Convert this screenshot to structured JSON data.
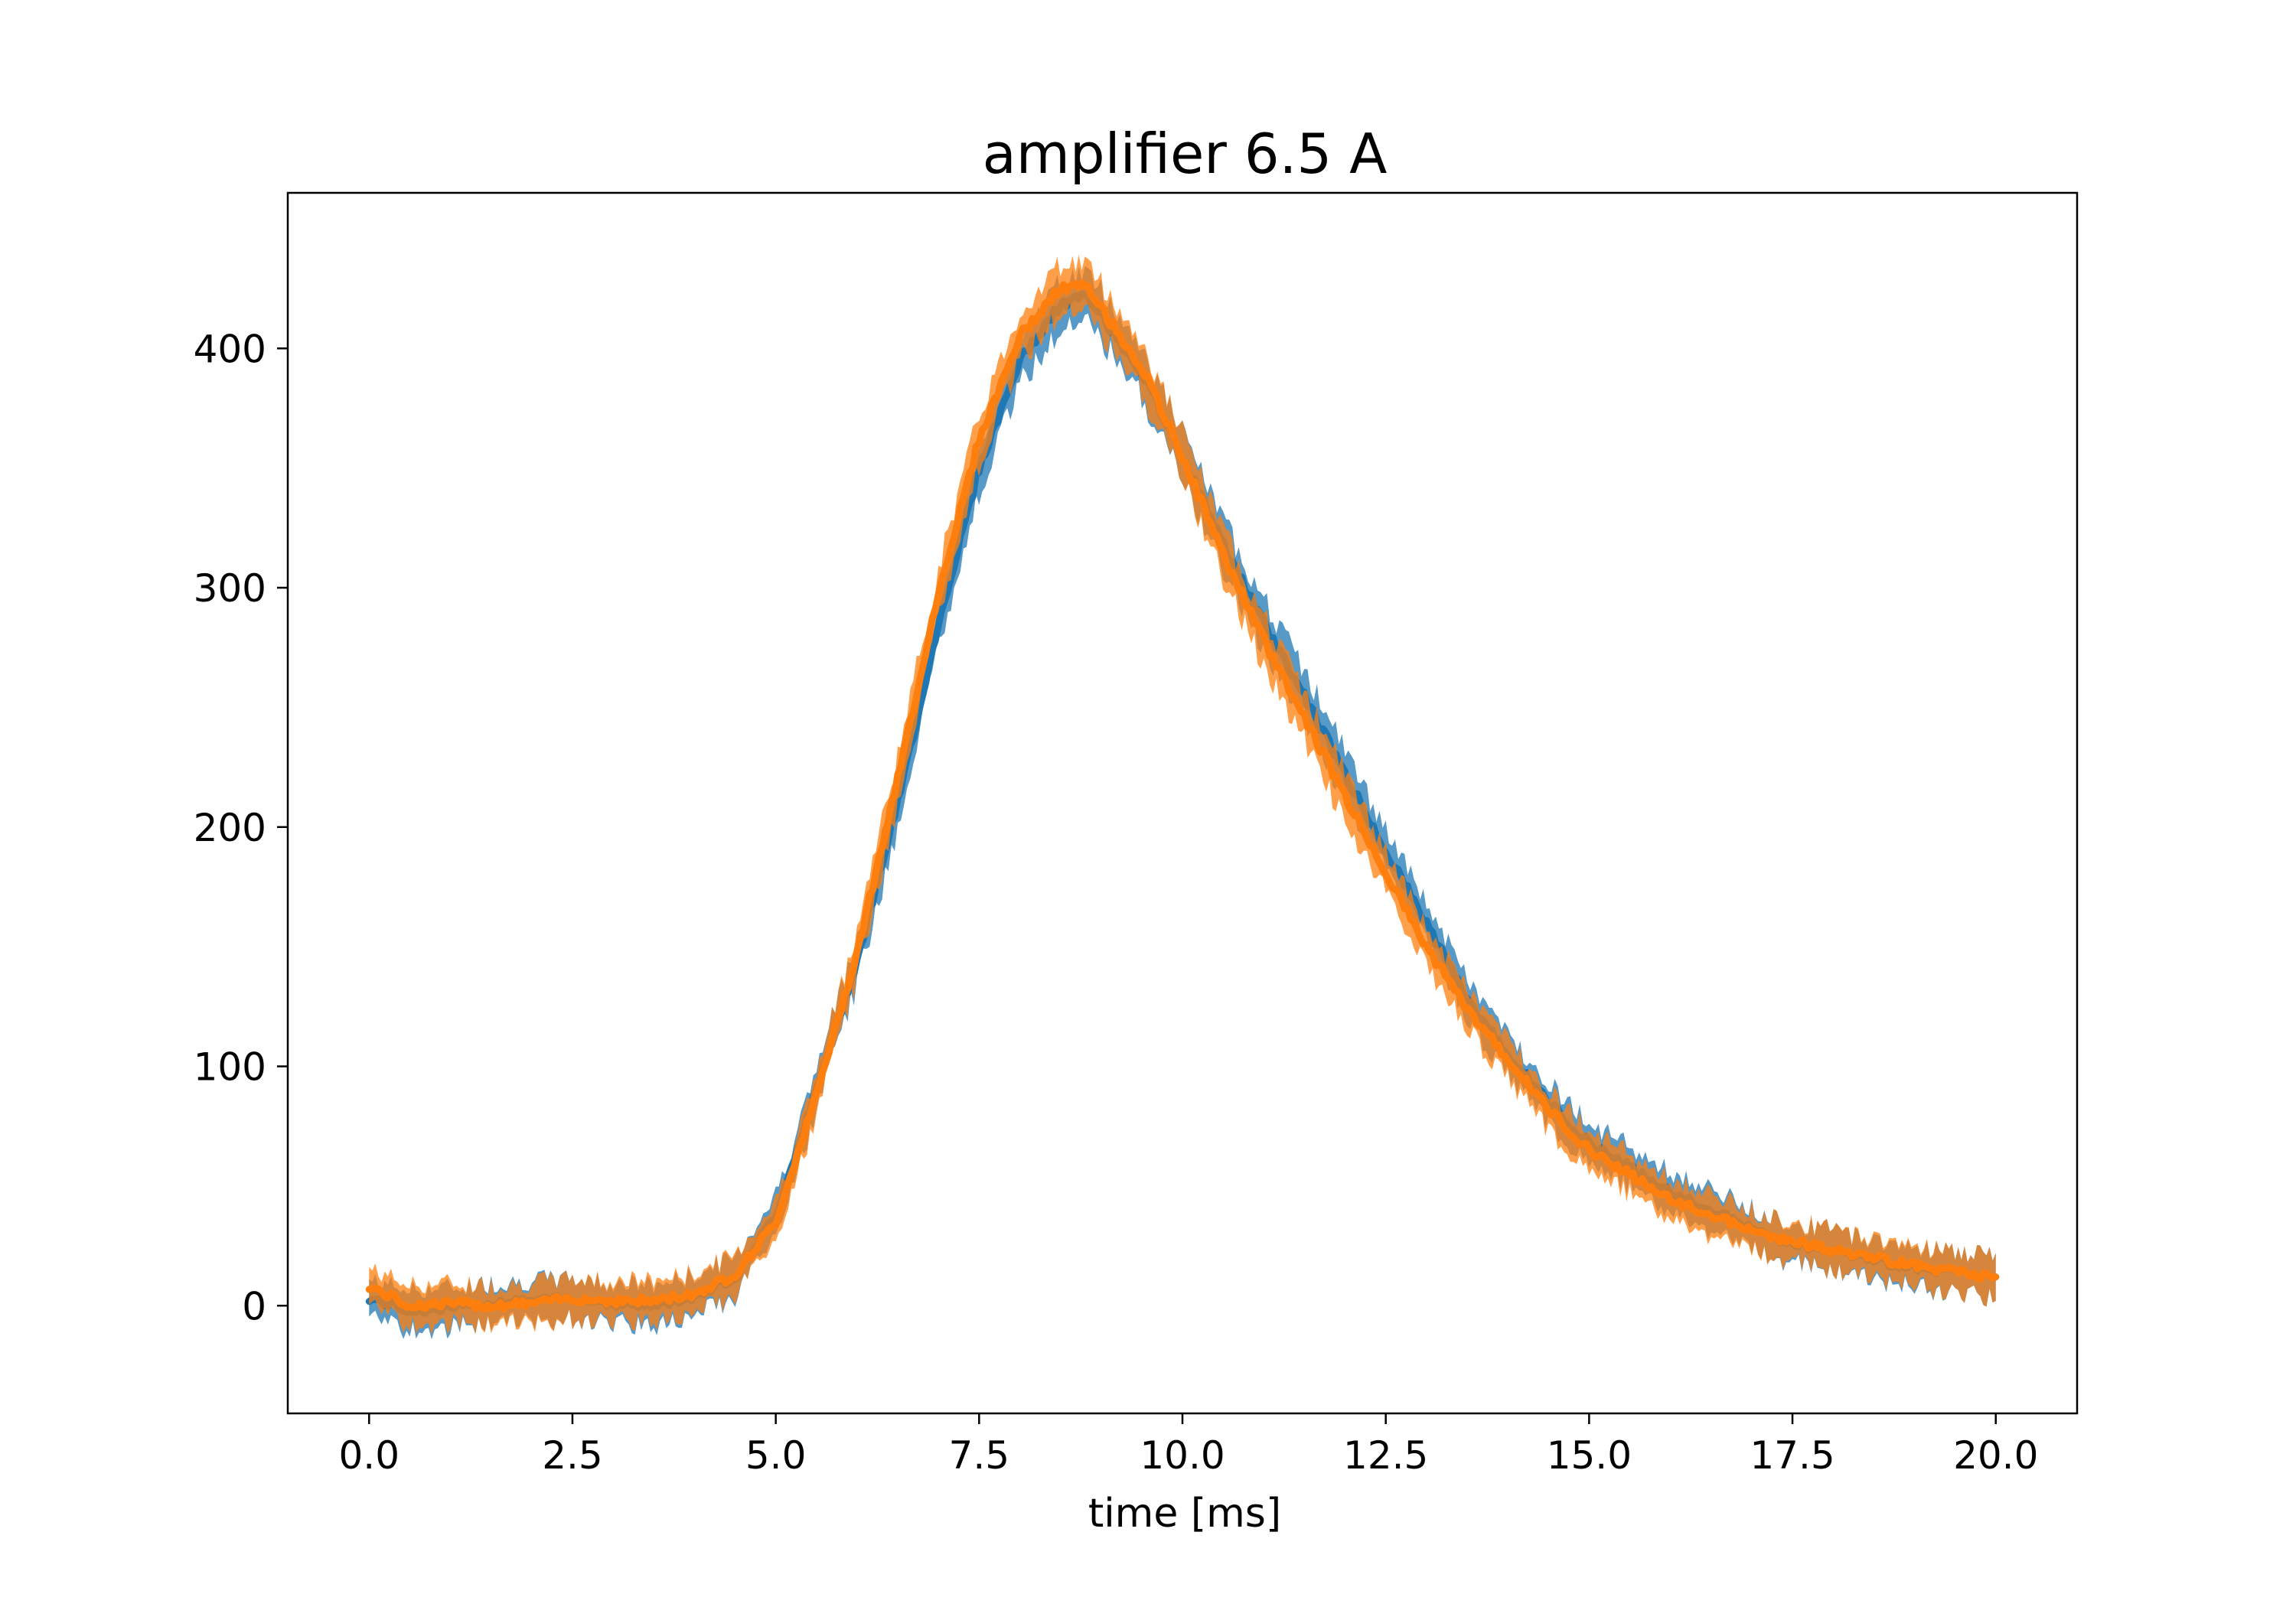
{
  "chart_data": {
    "type": "line",
    "title": "amplifier 6.5 A",
    "xlabel": "time [ms]",
    "ylabel": "",
    "xlim": [
      -1.0,
      21.0
    ],
    "ylim": [
      -45,
      465
    ],
    "xticks": [
      0.0,
      2.5,
      5.0,
      7.5,
      10.0,
      12.5,
      15.0,
      17.5,
      20.0
    ],
    "xtick_labels": [
      "0.0",
      "2.5",
      "5.0",
      "7.5",
      "10.0",
      "12.5",
      "15.0",
      "17.5",
      "20.0"
    ],
    "yticks": [
      0,
      100,
      200,
      300,
      400
    ],
    "ytick_labels": [
      "0",
      "100",
      "200",
      "300",
      "400"
    ],
    "grid": false,
    "legend": "none",
    "series": [
      {
        "color": "#1f77b4",
        "x": [
          0.0,
          0.5,
          1.0,
          1.5,
          2.0,
          2.5,
          3.0,
          3.5,
          4.0,
          4.5,
          5.0,
          5.5,
          6.0,
          6.5,
          7.0,
          7.5,
          8.0,
          8.5,
          8.8,
          9.0,
          9.5,
          10.0,
          10.5,
          11.0,
          11.5,
          12.0,
          12.5,
          13.0,
          13.5,
          14.0,
          14.5,
          15.0,
          15.5,
          16.0,
          16.5,
          17.0,
          17.5,
          18.0,
          18.5,
          19.0,
          19.5,
          20.0
        ],
        "y": [
          3,
          -2,
          -1,
          1,
          2,
          3,
          1,
          0,
          4,
          12,
          38,
          90,
          145,
          210,
          285,
          350,
          395,
          418,
          422,
          414,
          390,
          355,
          318,
          285,
          255,
          222,
          190,
          160,
          128,
          105,
          85,
          68,
          58,
          47,
          40,
          32,
          26,
          23,
          19,
          16,
          14,
          12
        ],
        "band": [
          9,
          10,
          10,
          10,
          10,
          10,
          10,
          10,
          10,
          10,
          10,
          10,
          12,
          12,
          12,
          12,
          12,
          12,
          12,
          12,
          12,
          12,
          12,
          12,
          12,
          12,
          10,
          10,
          10,
          10,
          10,
          10,
          10,
          10,
          10,
          10,
          10,
          10,
          10,
          10,
          10,
          10
        ]
      },
      {
        "color": "#ff7f0e",
        "x": [
          0.0,
          0.5,
          1.0,
          1.5,
          2.0,
          2.5,
          3.0,
          3.5,
          4.0,
          4.5,
          5.0,
          5.5,
          6.0,
          6.5,
          7.0,
          7.5,
          8.0,
          8.5,
          8.8,
          9.0,
          9.5,
          10.0,
          10.5,
          11.0,
          11.5,
          12.0,
          12.5,
          13.0,
          13.5,
          14.0,
          14.5,
          15.0,
          15.5,
          16.0,
          16.5,
          17.0,
          17.5,
          18.0,
          18.5,
          19.0,
          19.5,
          20.0
        ],
        "y": [
          8,
          0,
          1,
          0,
          1,
          3,
          2,
          2,
          5,
          13,
          35,
          88,
          148,
          220,
          298,
          362,
          405,
          425,
          426,
          417,
          392,
          355,
          314,
          278,
          246,
          213,
          181,
          150,
          124,
          103,
          82,
          65,
          55,
          44,
          38,
          31,
          27,
          23,
          20,
          17,
          14,
          12
        ],
        "band": [
          9,
          10,
          10,
          10,
          10,
          10,
          10,
          10,
          10,
          10,
          10,
          10,
          12,
          12,
          12,
          12,
          12,
          12,
          12,
          12,
          12,
          12,
          12,
          12,
          12,
          12,
          10,
          10,
          10,
          10,
          10,
          10,
          10,
          10,
          10,
          10,
          10,
          10,
          10,
          10,
          10,
          10
        ]
      }
    ]
  }
}
